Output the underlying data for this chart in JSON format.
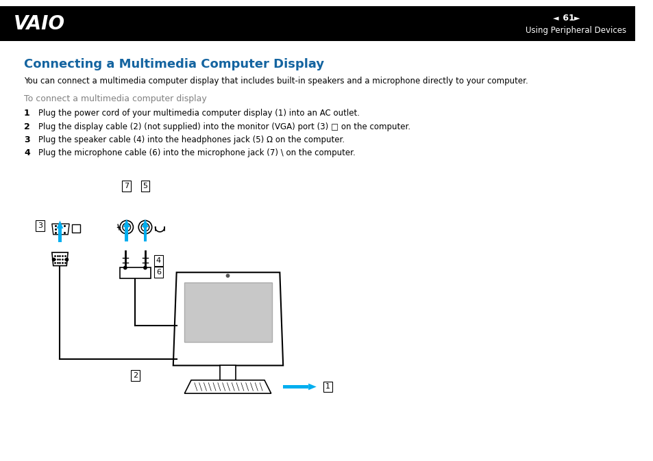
{
  "header_bg": "#000000",
  "header_text_color": "#ffffff",
  "page_num": "61",
  "section_title": "Using Peripheral Devices",
  "title": "Connecting a Multimedia Computer Display",
  "title_color": "#1464a0",
  "subtitle_color": "#808080",
  "subtitle": "To connect a multimedia computer display",
  "body_text": "You can connect a multimedia computer display that includes built-in speakers and a microphone directly to your computer.",
  "steps": [
    "Plug the power cord of your multimedia computer display (1) into an AC outlet.",
    "Plug the display cable (2) (not supplied) into the monitor (VGA) port (3) □ on the computer.",
    "Plug the speaker cable (4) into the headphones jack (5) Ω on the computer.",
    "Plug the microphone cable (6) into the microphone jack (7) \\ on the computer."
  ],
  "cyan": "#00aeef",
  "black": "#000000",
  "light_gray": "#c8c8c8"
}
